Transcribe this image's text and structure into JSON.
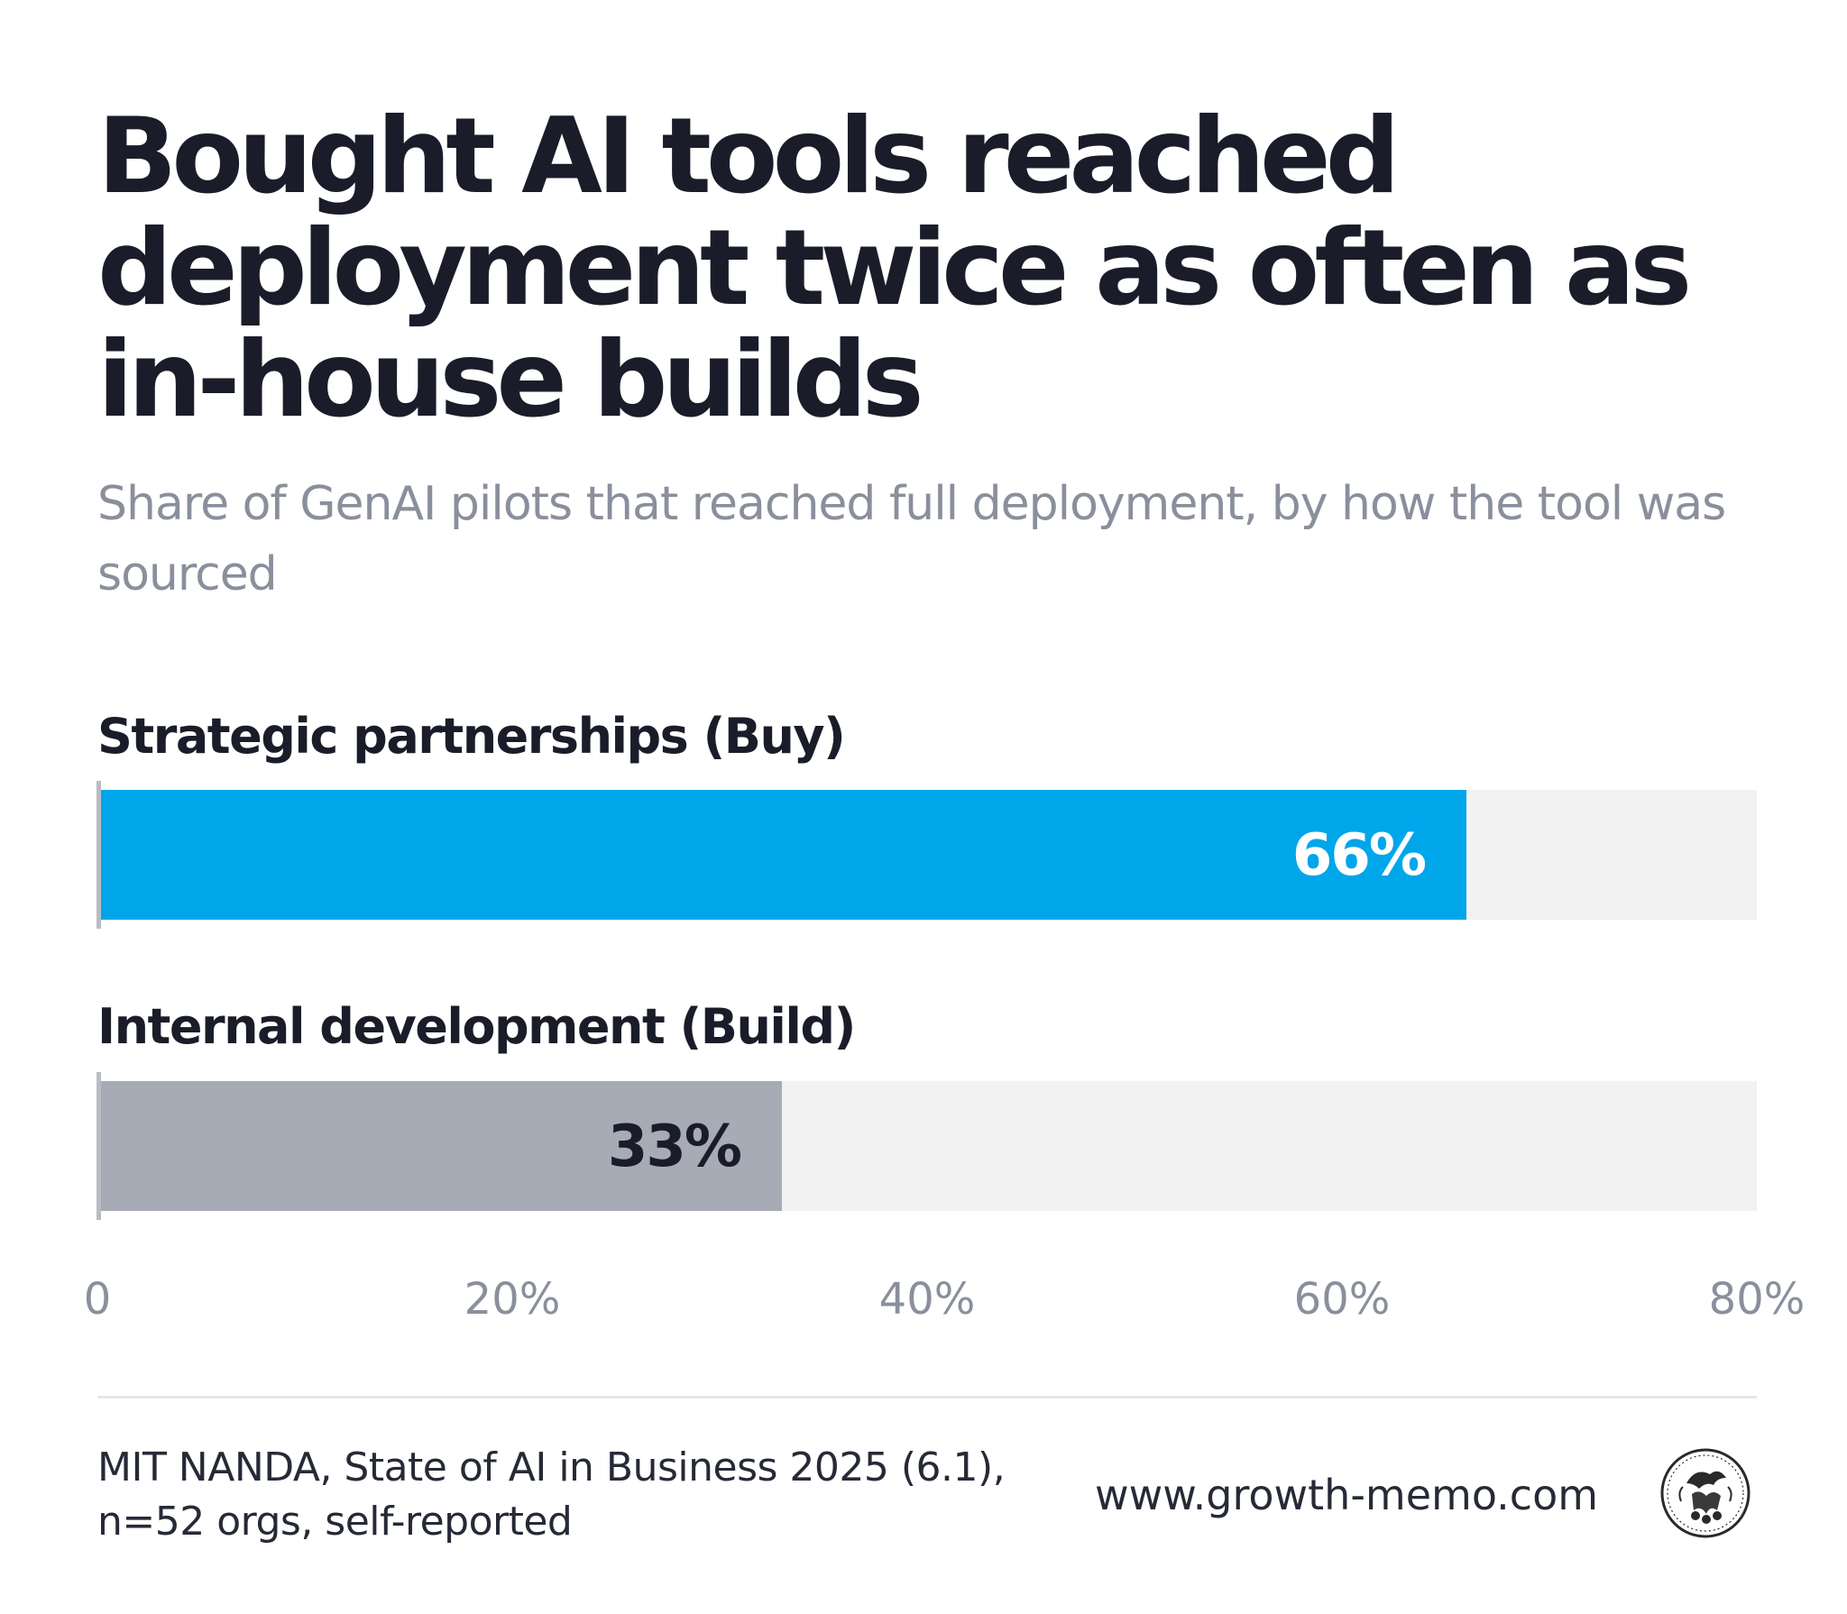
{
  "header": {
    "title": "Bought AI tools reached deployment twice as often as in-house builds",
    "subtitle": "Share of GenAI pilots that reached full deployment, by how the tool was sourced"
  },
  "chart_data": {
    "type": "bar",
    "orientation": "horizontal",
    "categories": [
      "Strategic partnerships (Buy)",
      "Internal development (Build)"
    ],
    "values": [
      66,
      33
    ],
    "value_labels": [
      "66%",
      "33%"
    ],
    "xlim": [
      0,
      80
    ],
    "ticks": [
      0,
      20,
      40,
      60,
      80
    ],
    "tick_labels": [
      "0",
      "20%",
      "40%",
      "60%",
      "80%"
    ],
    "bar_colors": [
      "#00a6ea",
      "#a6abb5"
    ],
    "label_colors": [
      "#ffffff",
      "#1a1d29"
    ],
    "track_color": "#f2f2f2",
    "grid": false
  },
  "footer": {
    "source_line1": "MIT NANDA, State of AI in Business 2025 (6.1),",
    "source_line2": "n=52 orgs, self-reported",
    "website": "www.growth-memo.com",
    "logo_icon": "seal-logo-icon"
  }
}
